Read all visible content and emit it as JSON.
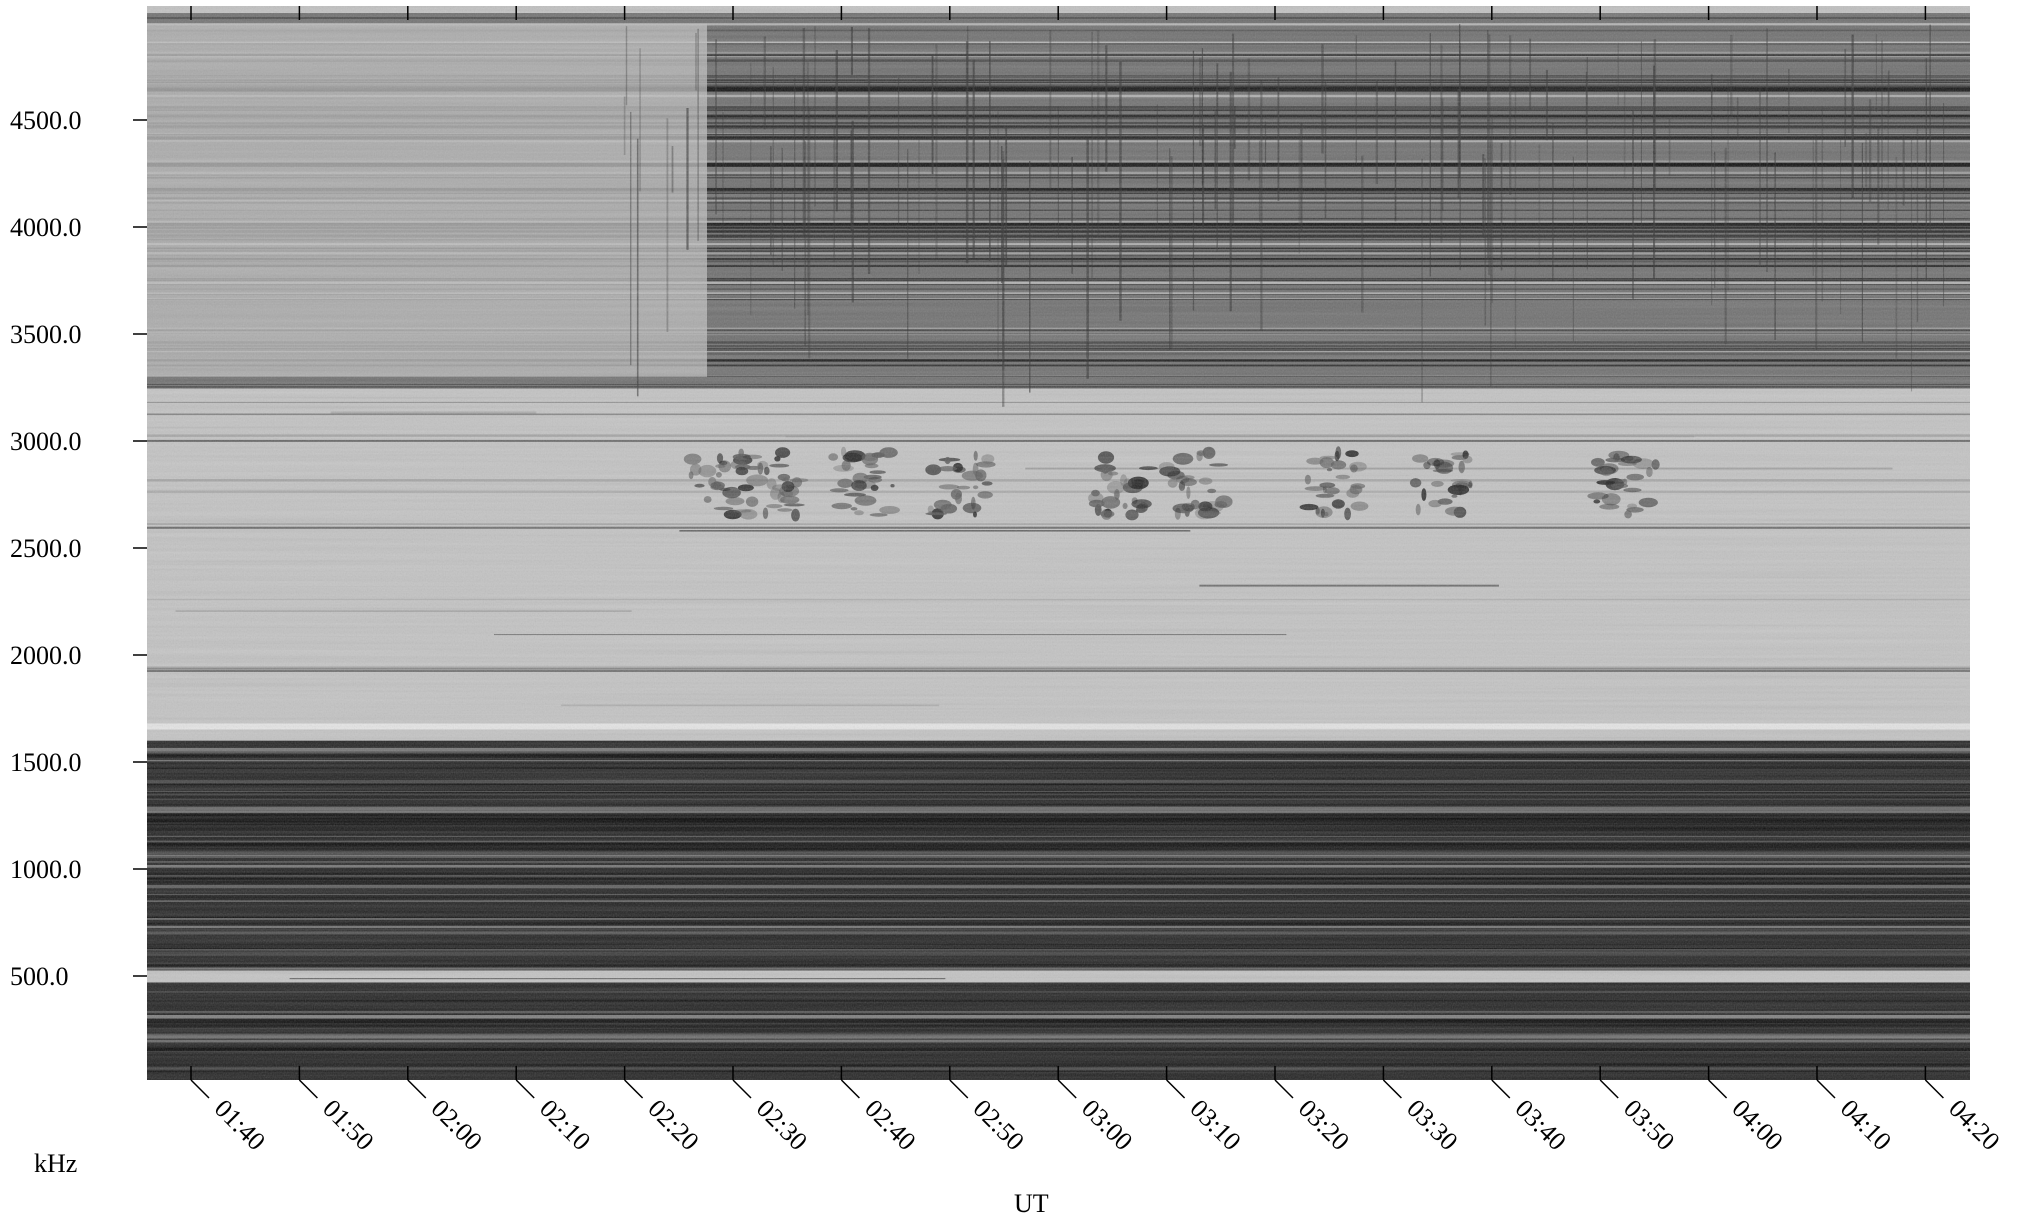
{
  "chart_data": {
    "type": "heatmap",
    "colormap": "grayscale (darker = stronger signal)",
    "ylabel": "kHz",
    "xlabel": "UT",
    "ylim": [
      0,
      5000
    ],
    "y_ticks": [
      "500.0",
      "1000.0",
      "1500.0",
      "2000.0",
      "2500.0",
      "3000.0",
      "3500.0",
      "4000.0",
      "4500.0"
    ],
    "x_ticks": [
      "01:40",
      "01:50",
      "02:00",
      "02:10",
      "02:20",
      "02:30",
      "02:40",
      "02:50",
      "03:00",
      "03:10",
      "03:20",
      "03:30",
      "03:40",
      "03:50",
      "04:00",
      "04:10",
      "04:20"
    ],
    "xlim": [
      "01:37",
      "04:20"
    ],
    "bands": [
      {
        "from_khz": 0,
        "to_khz": 470,
        "level": "dark"
      },
      {
        "from_khz": 470,
        "to_khz": 530,
        "level": "light"
      },
      {
        "from_khz": 530,
        "to_khz": 1600,
        "level": "dark"
      },
      {
        "from_khz": 1600,
        "to_khz": 3250,
        "level": "light"
      },
      {
        "from_khz": 3250,
        "to_khz": 5000,
        "level": "mixed"
      }
    ],
    "features": [
      {
        "type": "band-of-bursts",
        "freq_khz": [
          2650,
          2950
        ],
        "time": [
          "02:27",
          "03:55"
        ]
      }
    ]
  }
}
